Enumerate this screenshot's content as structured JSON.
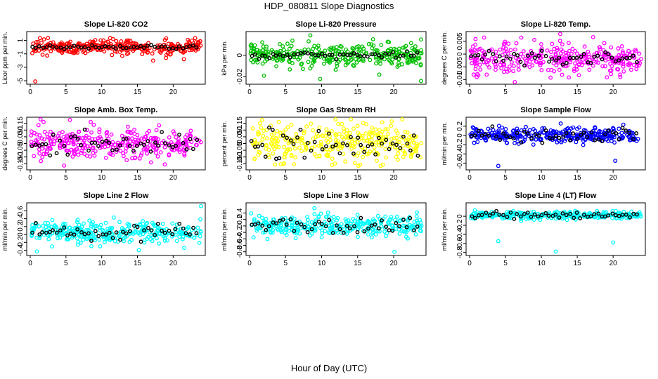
{
  "figure": {
    "title": "HDP_080811  Slope Diagnostics",
    "xlabel": "Hour of Day (UTC)"
  },
  "chart_data": [
    {
      "type": "scatter",
      "title": "Slope Li-820 CO2",
      "ylabel": "Licor ppm per min.",
      "color": "#ff0000",
      "xlim": [
        0,
        24
      ],
      "xticks": [
        0,
        5,
        10,
        15,
        20
      ],
      "ylim": [
        -5.2,
        2.0
      ],
      "yticks": [
        -5,
        -3,
        -1,
        1
      ],
      "center": 0,
      "spread": 0.5,
      "black_spread": 0.15,
      "outliers": [
        {
          "x": 0.7,
          "y": -5.1
        },
        {
          "x": 17.2,
          "y": -2.0
        },
        {
          "x": 21.5,
          "y": -1.8
        },
        {
          "x": 19.0,
          "y": -1.6
        }
      ]
    },
    {
      "type": "scatter",
      "title": "Slope Li-820 Pressure",
      "ylabel": "kPa per min.",
      "color": "#00c000",
      "xlim": [
        0,
        24
      ],
      "xticks": [
        0,
        5,
        10,
        15,
        20
      ],
      "ylim": [
        -0.025,
        0.02
      ],
      "yticks": [
        -0.02,
        0.0
      ],
      "center": 0,
      "spread": 0.005,
      "black_spread": 0.0015,
      "outliers": [
        {
          "x": 9.8,
          "y": -0.022
        },
        {
          "x": 23.8,
          "y": -0.024
        },
        {
          "x": 18.0,
          "y": -0.018
        },
        {
          "x": 2.0,
          "y": -0.019
        }
      ]
    },
    {
      "type": "scatter",
      "title": "Slope Li-820 Temp.",
      "ylabel": "degrees C per min.",
      "color": "#ff00ff",
      "xlim": [
        0,
        24
      ],
      "xticks": [
        0,
        5,
        10,
        15,
        20
      ],
      "ylim": [
        -0.011,
        0.008
      ],
      "yticks": [
        -0.01,
        -0.005,
        0.0,
        0.005
      ],
      "center": -0.0015,
      "spread": 0.003,
      "black_spread": 0.0015,
      "outliers": [
        {
          "x": 6.3,
          "y": -0.011
        },
        {
          "x": 1.0,
          "y": -0.009
        },
        {
          "x": 21.0,
          "y": -0.009
        }
      ]
    },
    {
      "type": "scatter",
      "title": "Slope Amb. Box Temp.",
      "ylabel": "degrees C per min.",
      "color": "#ff00ff",
      "xlim": [
        0,
        24
      ],
      "xticks": [
        0,
        5,
        10,
        15,
        20
      ],
      "ylim": [
        -0.18,
        0.18
      ],
      "yticks": [
        -0.15,
        -0.1,
        -0.05,
        0.0,
        0.05,
        0.1,
        0.15
      ],
      "center": 0,
      "spread": 0.06,
      "black_spread": 0.05,
      "outliers": []
    },
    {
      "type": "scatter",
      "title": "Slope Gas Stream RH",
      "ylabel": "percent per min.",
      "color": "#ffff00",
      "xlim": [
        0,
        24
      ],
      "xticks": [
        0,
        5,
        10,
        15,
        20
      ],
      "ylim": [
        -0.18,
        0.18
      ],
      "yticks": [
        -0.15,
        -0.1,
        -0.05,
        0.0,
        0.05,
        0.1,
        0.15
      ],
      "center": 0,
      "spread": 0.07,
      "black_spread": 0.06,
      "outliers": []
    },
    {
      "type": "scatter",
      "title": "Slope Sample Flow",
      "ylabel": "ml/min per min.",
      "color": "#0000ff",
      "xlim": [
        0,
        24
      ],
      "xticks": [
        0,
        5,
        10,
        15,
        20
      ],
      "ylim": [
        -0.7,
        0.35
      ],
      "yticks": [
        -0.6,
        -0.4,
        -0.2,
        0.0,
        0.2
      ],
      "center": 0,
      "spread": 0.08,
      "black_spread": 0.07,
      "outliers": [
        {
          "x": 4.0,
          "y": -0.66
        },
        {
          "x": 20.3,
          "y": -0.55
        }
      ]
    },
    {
      "type": "scatter",
      "title": "Slope Line 2 Flow",
      "ylabel": "ml/min per min.",
      "color": "#00ffff",
      "xlim": [
        0,
        24
      ],
      "xticks": [
        0,
        5,
        10,
        15,
        20
      ],
      "ylim": [
        -0.48,
        0.75
      ],
      "yticks": [
        -0.4,
        -0.2,
        0.0,
        0.2,
        0.4,
        0.6
      ],
      "center": 0.05,
      "spread": 0.14,
      "black_spread": 0.1,
      "outliers": [
        {
          "x": 23.9,
          "y": 0.72
        },
        {
          "x": 15.2,
          "y": -0.4
        }
      ]
    },
    {
      "type": "scatter",
      "title": "Slope Line 3 Flow",
      "ylabel": "ml/min per min.",
      "color": "#00ffff",
      "xlim": [
        0,
        24
      ],
      "xticks": [
        0,
        5,
        10,
        15,
        20
      ],
      "ylim": [
        -0.85,
        0.65
      ],
      "yticks": [
        -0.8,
        -0.6,
        -0.4,
        -0.2,
        0.0,
        0.2,
        0.4
      ],
      "center": 0,
      "spread": 0.15,
      "black_spread": 0.12,
      "outliers": [
        {
          "x": 20.1,
          "y": -0.8
        },
        {
          "x": 9.0,
          "y": 0.55
        }
      ]
    },
    {
      "type": "scatter",
      "title": "Slope Line 4 (LT) Flow",
      "ylabel": "ml/min per min.",
      "color": "#00ffff",
      "xlim": [
        0,
        24
      ],
      "xticks": [
        0,
        5,
        10,
        15,
        20
      ],
      "ylim": [
        -0.82,
        0.25
      ],
      "yticks": [
        -0.8,
        -0.6,
        -0.4,
        -0.2,
        0.0
      ],
      "center": 0.02,
      "spread": 0.04,
      "black_spread": 0.035,
      "outliers": [
        {
          "x": 4.0,
          "y": -0.55
        },
        {
          "x": 12.0,
          "y": -0.78
        },
        {
          "x": 20.0,
          "y": -0.58
        }
      ]
    }
  ]
}
